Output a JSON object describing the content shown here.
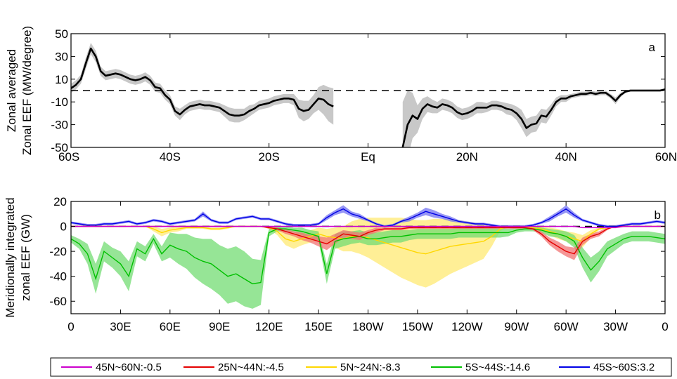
{
  "chart_data": [
    {
      "panel": "a",
      "type": "line",
      "ylabel_lines": [
        "Zonal averaged",
        "Zonal EEF (MW/degree)"
      ],
      "x_ticks": [
        "60S",
        "40S",
        "20S",
        "Eq",
        "20N",
        "40N",
        "60N"
      ],
      "x_tick_values": [
        -60,
        -40,
        -20,
        0,
        20,
        40,
        60
      ],
      "y_ticks": [
        -50,
        -30,
        -10,
        10,
        30,
        50
      ],
      "xlim": [
        -60,
        60
      ],
      "ylim": [
        -50,
        50
      ],
      "zero_line": "dashed",
      "segments": [
        {
          "x": [
            -60,
            -59,
            -58,
            -57,
            -56,
            -55,
            -54,
            -53,
            -52,
            -51,
            -50,
            -49,
            -48,
            -47,
            -46,
            -45,
            -44,
            -43,
            -42,
            -41,
            -40,
            -39,
            -38,
            -37,
            -36,
            -35,
            -34,
            -33,
            -32,
            -31,
            -30,
            -29,
            -28,
            -27,
            -26,
            -25,
            -24,
            -23,
            -22,
            -21,
            -20,
            -19,
            -18,
            -17,
            -16,
            -15,
            -14,
            -13,
            -12,
            -11,
            -10,
            -9,
            -8,
            -7
          ],
          "y": [
            2,
            5,
            10,
            24,
            37,
            30,
            17,
            13,
            14,
            15,
            14,
            12,
            10,
            9,
            10,
            12,
            9,
            3,
            2,
            -4,
            -8,
            -18,
            -21,
            -17,
            -14,
            -13,
            -12,
            -13,
            -13,
            -14,
            -15,
            -18,
            -21,
            -22,
            -22,
            -21,
            -18,
            -16,
            -13,
            -12,
            -11,
            -9,
            -8,
            -7,
            -7,
            -8,
            -16,
            -18,
            -17,
            -12,
            -7,
            -8,
            -12,
            -14
          ],
          "band": [
            4,
            4,
            4,
            5,
            5,
            5,
            4,
            4,
            4,
            4,
            4,
            4,
            4,
            4,
            4,
            4,
            4,
            4,
            4,
            4,
            4,
            4,
            5,
            4,
            4,
            4,
            4,
            4,
            4,
            4,
            4,
            5,
            6,
            6,
            6,
            5,
            5,
            4,
            4,
            4,
            4,
            4,
            4,
            4,
            4,
            5,
            8,
            9,
            8,
            8,
            10,
            13,
            15,
            16
          ]
        },
        {
          "x": [
            7,
            8,
            9,
            10,
            11,
            12,
            13,
            14,
            15,
            16,
            17,
            18,
            19,
            20,
            21,
            22,
            23,
            24,
            25,
            26,
            27,
            28,
            29,
            30,
            31,
            32,
            33,
            34,
            35,
            36,
            37,
            38,
            39,
            40,
            41,
            42,
            43,
            44,
            45,
            46,
            47,
            48,
            49,
            50,
            51,
            52,
            53,
            54,
            55,
            56,
            57,
            58,
            59,
            60
          ],
          "y": [
            -50,
            -30,
            -22,
            -25,
            -16,
            -12,
            -14,
            -15,
            -12,
            -13,
            -15,
            -19,
            -21,
            -20,
            -18,
            -15,
            -15,
            -15,
            -13,
            -13,
            -14,
            -16,
            -17,
            -20,
            -25,
            -33,
            -30,
            -29,
            -22,
            -23,
            -17,
            -10,
            -7,
            -7,
            -5,
            -4,
            -3,
            -3,
            -2,
            -3,
            -2,
            -2,
            -5,
            -9,
            -4,
            -1,
            0,
            0,
            0,
            0,
            0,
            0,
            0,
            1
          ],
          "band": [
            40,
            30,
            20,
            12,
            9,
            7,
            6,
            5,
            5,
            5,
            5,
            5,
            5,
            5,
            5,
            5,
            5,
            4,
            4,
            4,
            4,
            5,
            5,
            6,
            8,
            8,
            7,
            7,
            6,
            6,
            5,
            4,
            3,
            3,
            2,
            2,
            2,
            2,
            2,
            2,
            2,
            2,
            2,
            3,
            2,
            1,
            1,
            1,
            1,
            1,
            1,
            1,
            1,
            1
          ]
        }
      ]
    },
    {
      "panel": "b",
      "type": "line",
      "ylabel_lines": [
        "Meridionally integrated",
        "zonal EEF (GW)"
      ],
      "x_ticks": [
        "0",
        "30E",
        "60E",
        "90E",
        "120E",
        "150E",
        "180W",
        "150W",
        "120W",
        "90W",
        "60W",
        "30W",
        "0"
      ],
      "x_tick_values": [
        0,
        30,
        60,
        90,
        120,
        150,
        180,
        210,
        240,
        270,
        300,
        330,
        360
      ],
      "y_ticks": [
        -60,
        -40,
        -20,
        0,
        20
      ],
      "xlim": [
        0,
        360
      ],
      "ylim": [
        -70,
        20
      ],
      "zero_line": "dashed",
      "x": [
        0,
        5,
        10,
        15,
        20,
        25,
        30,
        35,
        40,
        45,
        50,
        55,
        60,
        65,
        70,
        75,
        80,
        85,
        90,
        95,
        100,
        105,
        110,
        115,
        120,
        125,
        130,
        135,
        140,
        145,
        150,
        155,
        160,
        165,
        170,
        175,
        180,
        185,
        190,
        195,
        200,
        205,
        210,
        215,
        220,
        225,
        230,
        235,
        240,
        245,
        250,
        255,
        260,
        265,
        270,
        275,
        280,
        285,
        290,
        295,
        300,
        305,
        310,
        315,
        320,
        325,
        330,
        335,
        340,
        345,
        350,
        355,
        360
      ],
      "series": [
        {
          "name": "45N~60N:-0.5",
          "color": "#cc00cc",
          "values": [
            0,
            0,
            0,
            0,
            0,
            0,
            0,
            0,
            0,
            0,
            0,
            0,
            0,
            0,
            0,
            0,
            0,
            0,
            0,
            0,
            0,
            0,
            0,
            0,
            0,
            0,
            0,
            0,
            0,
            0,
            0,
            0,
            0,
            0,
            0,
            0,
            0,
            0,
            0,
            0,
            0,
            0,
            0,
            0,
            0,
            0,
            0,
            0,
            0,
            0,
            0,
            0,
            0,
            0,
            0,
            0,
            0,
            0,
            0,
            0,
            0,
            0,
            -1,
            -1,
            -1,
            -1,
            -1,
            0,
            0,
            0,
            0,
            0,
            0
          ],
          "band": [
            0.5,
            0.5,
            0.5,
            0.5,
            0.5,
            0.5,
            0.5,
            0.5,
            0.5,
            0.5,
            0.5,
            0.5,
            0.5,
            0.5,
            0.5,
            0.5,
            0.5,
            0.5,
            0.5,
            0.5,
            0.5,
            0.5,
            0.5,
            0.5,
            0.5,
            0.5,
            0.5,
            0.5,
            0.5,
            0.5,
            0.5,
            0.5,
            0.5,
            0.5,
            0.5,
            0.5,
            0.5,
            0.5,
            0.5,
            0.5,
            0.5,
            0.5,
            0.5,
            0.5,
            0.5,
            0.5,
            0.5,
            0.5,
            0.5,
            0.5,
            0.5,
            0.5,
            0.5,
            0.5,
            0.5,
            0.5,
            0.5,
            0.5,
            0.5,
            0.5,
            0.5,
            0.5,
            0.5,
            0.5,
            0.5,
            0.5,
            0.5,
            0.5,
            0.5,
            0.5,
            0.5,
            0.5,
            0.5
          ]
        },
        {
          "name": "25N~44N:-4.5",
          "color": "#e50000",
          "values": [
            0,
            0,
            0,
            0,
            0,
            0,
            0,
            0,
            0,
            0,
            0,
            0,
            0,
            0,
            0,
            0,
            0,
            0,
            0,
            0,
            0,
            0,
            0,
            0,
            -1,
            -2,
            -4,
            -6,
            -8,
            -10,
            -12,
            -14,
            -10,
            -6,
            -7,
            -8,
            -5,
            -3,
            -2,
            -2,
            -2,
            -1,
            -1,
            -1,
            -1,
            -1,
            -1,
            -1,
            -1,
            -1,
            -1,
            -1,
            -1,
            -1,
            -1,
            -1,
            -2,
            -6,
            -12,
            -16,
            -20,
            -22,
            -12,
            -8,
            -6,
            -2,
            0,
            0,
            0,
            0,
            0,
            0,
            0
          ],
          "band": [
            0,
            0,
            0,
            0,
            0,
            0,
            0,
            0,
            0,
            0,
            0,
            0,
            0,
            0,
            0,
            0,
            0,
            0,
            0,
            0,
            0,
            0,
            0,
            0,
            1,
            1,
            2,
            2,
            3,
            3,
            4,
            5,
            4,
            3,
            3,
            3,
            2,
            2,
            1,
            1,
            1,
            1,
            1,
            1,
            1,
            1,
            1,
            1,
            1,
            1,
            1,
            1,
            1,
            1,
            1,
            1,
            1,
            2,
            3,
            4,
            4,
            5,
            3,
            2,
            2,
            1,
            0,
            0,
            0,
            0,
            0,
            0,
            0
          ]
        },
        {
          "name": "5N~24N:-8.3",
          "color": "#ffd700",
          "values": [
            0,
            0,
            0,
            0,
            0,
            0,
            0,
            0,
            0,
            0,
            -2,
            -5,
            -3,
            -2,
            -1,
            -1,
            -1,
            -2,
            -2,
            -1,
            0,
            0,
            0,
            0,
            -1,
            -4,
            -10,
            -12,
            -10,
            -8,
            -6,
            -8,
            -9,
            -10,
            -8,
            -8,
            -9,
            -11,
            -13,
            -15,
            -17,
            -19,
            -21,
            -22,
            -20,
            -18,
            -16,
            -15,
            -14,
            -13,
            -12,
            -8,
            -2,
            0,
            0,
            0,
            -1,
            -2,
            -4,
            -6,
            -8,
            -10,
            -12,
            -6,
            -2,
            -1,
            0,
            0,
            0,
            0,
            0,
            0,
            0
          ],
          "band": [
            0,
            0,
            0,
            0,
            0,
            0,
            0,
            0,
            0,
            0,
            2,
            3,
            2,
            2,
            1,
            1,
            1,
            1,
            1,
            1,
            0,
            0,
            0,
            0,
            1,
            3,
            5,
            6,
            5,
            5,
            5,
            6,
            8,
            10,
            12,
            14,
            16,
            18,
            20,
            22,
            24,
            25,
            26,
            27,
            26,
            24,
            22,
            20,
            18,
            16,
            14,
            8,
            2,
            0,
            0,
            0,
            1,
            2,
            3,
            4,
            4,
            5,
            5,
            3,
            1,
            1,
            0,
            0,
            0,
            0,
            0,
            0,
            0
          ]
        },
        {
          "name": "5S~44S:-14.6",
          "color": "#00c000",
          "values": [
            -10,
            -14,
            -22,
            -42,
            -20,
            -25,
            -30,
            -40,
            -18,
            -22,
            -10,
            -22,
            -15,
            -18,
            -20,
            -25,
            -28,
            -30,
            -35,
            -40,
            -38,
            -42,
            -46,
            -45,
            -5,
            -2,
            -2,
            -3,
            -4,
            -6,
            -8,
            -38,
            -12,
            -10,
            -9,
            -8,
            -10,
            -10,
            -9,
            -8,
            -8,
            -7,
            -6,
            -6,
            -6,
            -6,
            -6,
            -5,
            -5,
            -5,
            -5,
            -5,
            -5,
            -5,
            -3,
            -2,
            -2,
            -3,
            -5,
            -6,
            -8,
            -12,
            -25,
            -35,
            -28,
            -18,
            -14,
            -10,
            -8,
            -8,
            -8,
            -9,
            -10
          ],
          "band": [
            3,
            4,
            8,
            12,
            8,
            8,
            10,
            12,
            6,
            6,
            4,
            6,
            10,
            12,
            14,
            16,
            18,
            20,
            20,
            22,
            22,
            22,
            20,
            18,
            3,
            2,
            2,
            2,
            3,
            3,
            4,
            8,
            6,
            6,
            5,
            5,
            5,
            5,
            5,
            5,
            5,
            4,
            4,
            4,
            4,
            4,
            4,
            4,
            4,
            4,
            4,
            4,
            4,
            3,
            2,
            2,
            2,
            2,
            3,
            3,
            4,
            5,
            8,
            10,
            8,
            6,
            5,
            4,
            4,
            4,
            4,
            4,
            4
          ]
        },
        {
          "name": "45S~60S:3.2",
          "color": "#0000e6",
          "values": [
            3,
            2,
            1,
            1,
            2,
            2,
            3,
            4,
            2,
            3,
            5,
            4,
            2,
            3,
            4,
            5,
            10,
            5,
            3,
            3,
            6,
            7,
            8,
            6,
            6,
            4,
            2,
            1,
            1,
            1,
            2,
            7,
            11,
            14,
            10,
            8,
            5,
            2,
            0,
            1,
            4,
            6,
            9,
            12,
            10,
            8,
            6,
            4,
            3,
            2,
            2,
            1,
            0,
            0,
            0,
            0,
            1,
            3,
            6,
            10,
            14,
            9,
            5,
            3,
            1,
            0,
            0,
            1,
            2,
            2,
            3,
            4,
            3
          ],
          "band": [
            1,
            1,
            1,
            1,
            1,
            1,
            1,
            1,
            1,
            1,
            1,
            1,
            1,
            1,
            1,
            1,
            2,
            1,
            1,
            1,
            1,
            1,
            1,
            1,
            1,
            1,
            1,
            1,
            1,
            1,
            1,
            2,
            2,
            3,
            2,
            2,
            1,
            1,
            1,
            1,
            1,
            2,
            2,
            3,
            3,
            2,
            2,
            1,
            1,
            1,
            1,
            1,
            1,
            1,
            1,
            1,
            1,
            1,
            2,
            2,
            3,
            2,
            1,
            1,
            1,
            1,
            1,
            1,
            1,
            1,
            1,
            1,
            1
          ]
        }
      ]
    }
  ]
}
